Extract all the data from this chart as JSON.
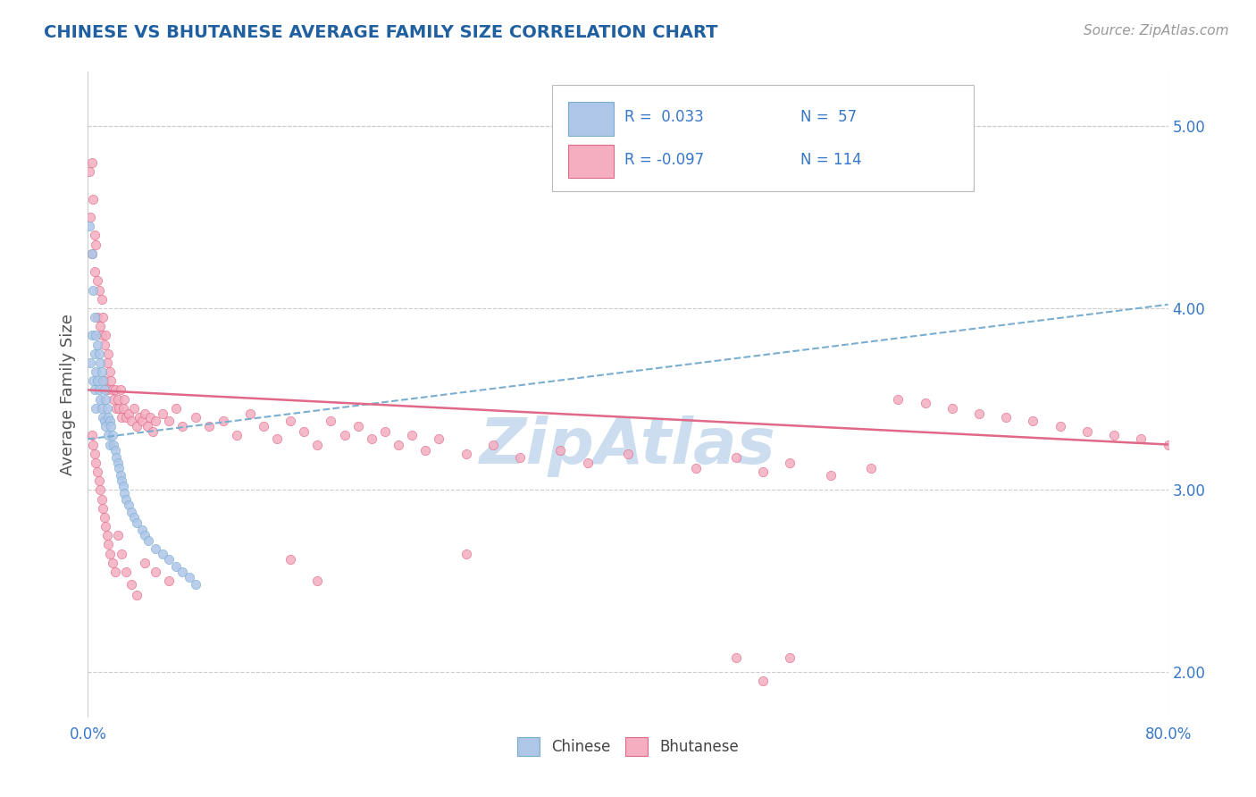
{
  "title": "CHINESE VS BHUTANESE AVERAGE FAMILY SIZE CORRELATION CHART",
  "source_text": "Source: ZipAtlas.com",
  "ylabel": "Average Family Size",
  "xlim": [
    0.0,
    0.8
  ],
  "ylim": [
    1.75,
    5.3
  ],
  "yticks_right": [
    2.0,
    3.0,
    4.0,
    5.0
  ],
  "xticks": [
    0.0,
    0.8
  ],
  "xtick_labels": [
    "0.0%",
    "80.0%"
  ],
  "chinese_color": "#aec6e8",
  "bhutanese_color": "#f4aec0",
  "trend_chinese_color": "#7aaed0",
  "trend_bhutanese_color": "#e06888",
  "blue_text_color": "#3878c8",
  "title_color": "#2060a0",
  "watermark_color": "#ccddf0",
  "chinese_x": [
    0.001,
    0.002,
    0.003,
    0.003,
    0.004,
    0.004,
    0.005,
    0.005,
    0.005,
    0.006,
    0.006,
    0.006,
    0.007,
    0.007,
    0.008,
    0.008,
    0.009,
    0.009,
    0.01,
    0.01,
    0.011,
    0.011,
    0.012,
    0.012,
    0.013,
    0.013,
    0.014,
    0.015,
    0.015,
    0.016,
    0.016,
    0.017,
    0.018,
    0.019,
    0.02,
    0.021,
    0.022,
    0.023,
    0.024,
    0.025,
    0.026,
    0.027,
    0.028,
    0.03,
    0.032,
    0.034,
    0.036,
    0.04,
    0.042,
    0.045,
    0.05,
    0.055,
    0.06,
    0.065,
    0.07,
    0.075,
    0.08
  ],
  "chinese_y": [
    4.45,
    3.7,
    4.3,
    3.85,
    4.1,
    3.6,
    3.95,
    3.75,
    3.55,
    3.85,
    3.65,
    3.45,
    3.8,
    3.6,
    3.75,
    3.55,
    3.7,
    3.5,
    3.65,
    3.45,
    3.6,
    3.4,
    3.55,
    3.38,
    3.5,
    3.35,
    3.45,
    3.4,
    3.3,
    3.38,
    3.25,
    3.35,
    3.3,
    3.25,
    3.22,
    3.18,
    3.15,
    3.12,
    3.08,
    3.05,
    3.02,
    2.98,
    2.95,
    2.92,
    2.88,
    2.85,
    2.82,
    2.78,
    2.75,
    2.72,
    2.68,
    2.65,
    2.62,
    2.58,
    2.55,
    2.52,
    2.48
  ],
  "bhutanese_x": [
    0.001,
    0.002,
    0.003,
    0.003,
    0.004,
    0.005,
    0.005,
    0.006,
    0.007,
    0.007,
    0.008,
    0.009,
    0.01,
    0.01,
    0.011,
    0.012,
    0.012,
    0.013,
    0.014,
    0.015,
    0.015,
    0.016,
    0.017,
    0.018,
    0.019,
    0.02,
    0.021,
    0.022,
    0.023,
    0.024,
    0.025,
    0.026,
    0.027,
    0.028,
    0.03,
    0.032,
    0.034,
    0.036,
    0.038,
    0.04,
    0.042,
    0.044,
    0.046,
    0.048,
    0.05,
    0.055,
    0.06,
    0.065,
    0.07,
    0.08,
    0.09,
    0.1,
    0.11,
    0.12,
    0.13,
    0.14,
    0.15,
    0.16,
    0.17,
    0.18,
    0.19,
    0.2,
    0.21,
    0.22,
    0.23,
    0.24,
    0.25,
    0.26,
    0.28,
    0.3,
    0.32,
    0.35,
    0.37,
    0.4,
    0.45,
    0.48,
    0.5,
    0.52,
    0.55,
    0.58,
    0.6,
    0.62,
    0.64,
    0.66,
    0.68,
    0.7,
    0.72,
    0.74,
    0.76,
    0.78,
    0.8,
    0.003,
    0.004,
    0.005,
    0.006,
    0.007,
    0.008,
    0.009,
    0.01,
    0.011,
    0.012,
    0.013,
    0.014,
    0.015,
    0.016,
    0.018,
    0.02,
    0.022,
    0.025,
    0.028,
    0.032,
    0.036,
    0.042,
    0.05,
    0.06
  ],
  "bhutanese_y": [
    4.75,
    4.5,
    4.8,
    4.3,
    4.6,
    4.4,
    4.2,
    4.35,
    4.15,
    3.95,
    4.1,
    3.9,
    4.05,
    3.85,
    3.95,
    3.8,
    3.6,
    3.85,
    3.7,
    3.75,
    3.55,
    3.65,
    3.6,
    3.55,
    3.5,
    3.55,
    3.45,
    3.5,
    3.45,
    3.55,
    3.4,
    3.45,
    3.5,
    3.4,
    3.42,
    3.38,
    3.45,
    3.35,
    3.4,
    3.38,
    3.42,
    3.35,
    3.4,
    3.32,
    3.38,
    3.42,
    3.38,
    3.45,
    3.35,
    3.4,
    3.35,
    3.38,
    3.3,
    3.42,
    3.35,
    3.28,
    3.38,
    3.32,
    3.25,
    3.38,
    3.3,
    3.35,
    3.28,
    3.32,
    3.25,
    3.3,
    3.22,
    3.28,
    3.2,
    3.25,
    3.18,
    3.22,
    3.15,
    3.2,
    3.12,
    3.18,
    3.1,
    3.15,
    3.08,
    3.12,
    3.5,
    3.48,
    3.45,
    3.42,
    3.4,
    3.38,
    3.35,
    3.32,
    3.3,
    3.28,
    3.25,
    3.3,
    3.25,
    3.2,
    3.15,
    3.1,
    3.05,
    3.0,
    2.95,
    2.9,
    2.85,
    2.8,
    2.75,
    2.7,
    2.65,
    2.6,
    2.55,
    2.75,
    2.65,
    2.55,
    2.48,
    2.42,
    2.6,
    2.55,
    2.5
  ],
  "bhutanese_outliers_x": [
    0.15,
    0.17,
    0.28,
    0.48,
    0.5,
    0.52
  ],
  "bhutanese_outliers_y": [
    2.62,
    2.5,
    2.65,
    2.08,
    1.95,
    2.08
  ]
}
